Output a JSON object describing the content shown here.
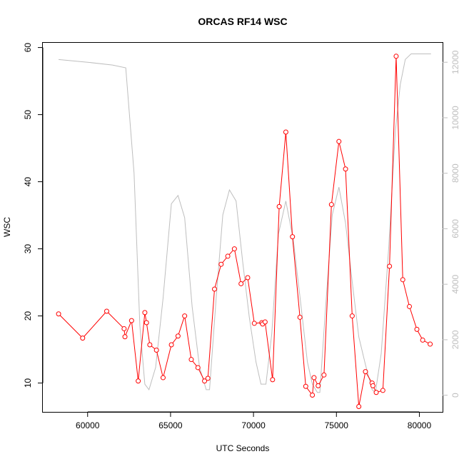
{
  "chart_data": {
    "type": "line",
    "title": "ORCAS RF14 WSC",
    "xlabel": "UTC Seconds",
    "ylabel": "WSC",
    "xlim": [
      57300,
      81400
    ],
    "ylim": [
      5.7,
      60.7
    ],
    "y2lim": [
      -600,
      12700
    ],
    "x_ticks": [
      60000,
      65000,
      70000,
      75000,
      80000
    ],
    "y_ticks": [
      10,
      20,
      30,
      40,
      50,
      60
    ],
    "y2_ticks": [
      0,
      2000,
      4000,
      6000,
      8000,
      10000,
      12000
    ],
    "grid": false,
    "colors": {
      "primary": "#ff0000",
      "secondary": "#bebebe"
    },
    "series": [
      {
        "axis": "left",
        "style": "line+circle-markers",
        "color": "#ff0000",
        "x": [
          58250,
          59700,
          61150,
          62200,
          62250,
          62650,
          63050,
          63450,
          63550,
          63750,
          64150,
          64550,
          65050,
          65450,
          65850,
          66250,
          66650,
          67050,
          67250,
          67650,
          68050,
          68450,
          68850,
          69250,
          69650,
          70050,
          70500,
          70550,
          70700,
          71150,
          71550,
          71950,
          72350,
          72800,
          73150,
          73550,
          73650,
          73900,
          74250,
          74700,
          75150,
          75550,
          75950,
          76350,
          76750,
          77150,
          77200,
          77400,
          77800,
          78200,
          78600,
          79000,
          79400,
          79850,
          80200,
          80650
        ],
        "y": [
          20.3,
          16.7,
          20.7,
          18.1,
          16.9,
          19.3,
          10.3,
          20.5,
          19.0,
          15.7,
          14.9,
          10.8,
          15.7,
          17.0,
          20.0,
          13.5,
          12.3,
          10.3,
          10.7,
          24.0,
          27.7,
          28.9,
          30.0,
          24.8,
          25.7,
          18.9,
          19.0,
          18.8,
          19.1,
          10.5,
          36.3,
          47.4,
          31.8,
          19.8,
          9.5,
          8.2,
          10.8,
          9.6,
          11.2,
          36.6,
          46.0,
          41.9,
          20.0,
          6.5,
          11.7,
          10.0,
          9.6,
          8.6,
          8.9,
          27.4,
          58.7,
          25.4,
          21.4,
          18.0,
          16.4,
          15.8
        ]
      },
      {
        "axis": "right",
        "style": "line",
        "color": "#bebebe",
        "x": [
          58250,
          60000,
          61500,
          62300,
          62800,
          63150,
          63450,
          63700,
          64100,
          64550,
          65050,
          65450,
          65850,
          66300,
          66750,
          67150,
          67350,
          67750,
          68150,
          68550,
          68950,
          69350,
          69750,
          70150,
          70450,
          70750,
          71100,
          71500,
          71950,
          72400,
          72850,
          73250,
          73550,
          73850,
          74000,
          74350,
          74750,
          75150,
          75550,
          75950,
          76350,
          76750,
          77150,
          77350,
          77700,
          78150,
          78550,
          78850,
          79150,
          79500,
          80000,
          80700
        ],
        "y": [
          12100,
          12000,
          11900,
          11800,
          8000,
          2500,
          400,
          200,
          1000,
          3500,
          6900,
          7200,
          6400,
          3200,
          1000,
          200,
          200,
          3500,
          6500,
          7400,
          7000,
          4800,
          2800,
          1200,
          400,
          400,
          2200,
          5800,
          7000,
          5600,
          3300,
          1200,
          400,
          100,
          100,
          3200,
          6500,
          7500,
          6200,
          4100,
          2100,
          1100,
          200,
          100,
          1500,
          5300,
          9500,
          11200,
          12100,
          12300,
          12300,
          12300
        ]
      }
    ]
  }
}
